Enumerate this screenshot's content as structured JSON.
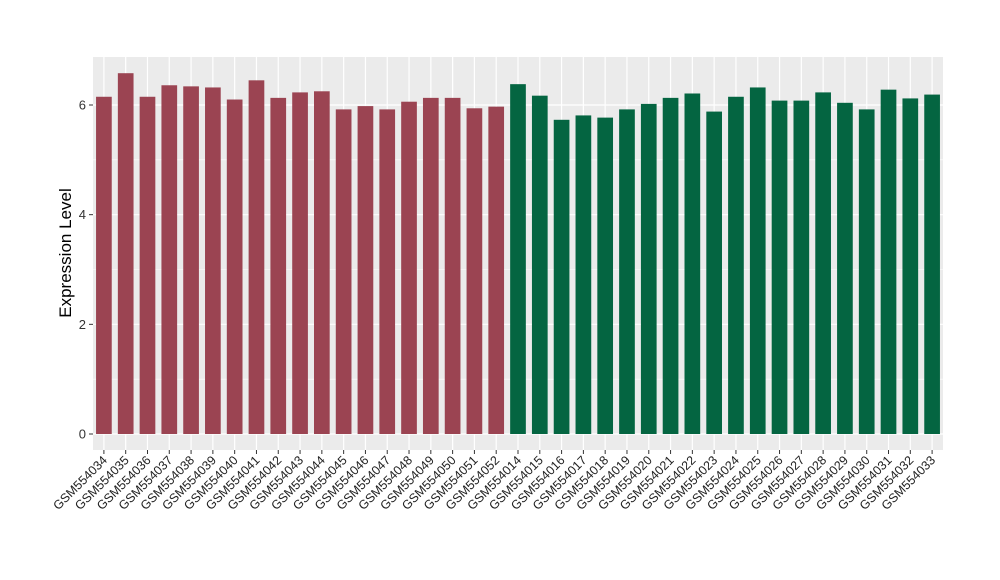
{
  "chart_data": {
    "type": "bar",
    "title": "",
    "xlabel": "",
    "ylabel": "Expression Level",
    "ylim": [
      0,
      6.9
    ],
    "yticks": [
      0,
      2,
      4,
      6
    ],
    "grid": true,
    "legend": "none",
    "categories": [
      "GSM554034",
      "GSM554035",
      "GSM554036",
      "GSM554037",
      "GSM554038",
      "GSM554039",
      "GSM554040",
      "GSM554041",
      "GSM554042",
      "GSM554043",
      "GSM554044",
      "GSM554045",
      "GSM554046",
      "GSM554047",
      "GSM554048",
      "GSM554049",
      "GSM554050",
      "GSM554051",
      "GSM554052",
      "GSM554014",
      "GSM554015",
      "GSM554016",
      "GSM554017",
      "GSM554018",
      "GSM554019",
      "GSM554020",
      "GSM554021",
      "GSM554022",
      "GSM554023",
      "GSM554024",
      "GSM554025",
      "GSM554026",
      "GSM554027",
      "GSM554028",
      "GSM554029",
      "GSM554030",
      "GSM554031",
      "GSM554032",
      "GSM554033"
    ],
    "values": [
      6.15,
      6.58,
      6.15,
      6.36,
      6.34,
      6.32,
      6.1,
      6.45,
      6.13,
      6.23,
      6.25,
      5.92,
      5.98,
      5.92,
      6.06,
      6.13,
      6.13,
      5.94,
      5.97,
      6.38,
      6.17,
      5.73,
      5.81,
      5.77,
      5.92,
      6.02,
      6.13,
      6.21,
      5.88,
      6.15,
      6.32,
      6.08,
      6.08,
      6.23,
      6.04,
      5.92,
      6.28,
      6.12,
      6.19
    ],
    "groups": [
      {
        "count": 19,
        "color": "#9b4452"
      },
      {
        "count": 20,
        "color": "#046541"
      }
    ],
    "panel_background": "#ebebeb",
    "gridline_color": "#ffffff"
  }
}
